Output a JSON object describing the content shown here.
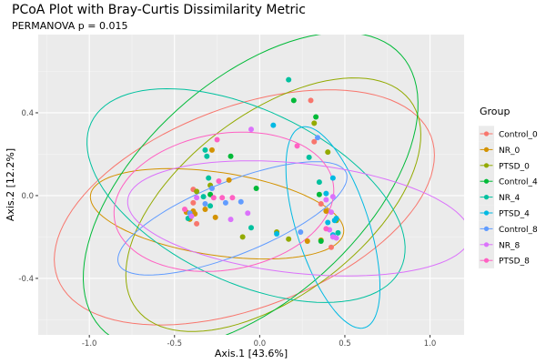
{
  "colors": {
    "Control_0": "#F8766D",
    "NR_0": "#D39200",
    "PTSD_0": "#93AA00",
    "Control_4": "#00BA38",
    "NR_4": "#00C19F",
    "PTSD_4": "#00B9E3",
    "Control_8": "#619CFF",
    "NR_8": "#DB72FB",
    "PTSD_8": "#FF61C3"
  },
  "chart_data": {
    "type": "scatter",
    "title": "PCoA Plot with Bray-Curtis Dissimilarity Metric",
    "subtitle": "PERMANOVA p = 0.015",
    "xlabel": "Axis.1  [43.6%]",
    "ylabel": "Axis.2  [12.2%]",
    "xlim": [
      -1.3,
      1.2
    ],
    "ylim": [
      -0.673,
      0.778
    ],
    "xticks": [
      -1.0,
      -0.5,
      0.0,
      0.5,
      1.0
    ],
    "xtick_labels": [
      "-1.0",
      "-0.5",
      "0.0",
      "0.5",
      "1.0"
    ],
    "yticks": [
      -0.4,
      0.0,
      0.4
    ],
    "ytick_labels": [
      "-0.4",
      "0.0",
      "0.4"
    ],
    "grid": true,
    "legend": {
      "title": "Group",
      "placement": "right"
    },
    "series": [
      {
        "name": "Control_0",
        "points": [
          [
            -0.39,
            0.03
          ],
          [
            -0.39,
            -0.035
          ],
          [
            -0.37,
            -0.136
          ],
          [
            0.3,
            0.46
          ],
          [
            0.32,
            0.26
          ],
          [
            0.36,
            -0.04
          ],
          [
            0.42,
            -0.25
          ]
        ],
        "ellipse": {
          "center": [
            -0.09,
            -0.057
          ],
          "major": [
            1.096,
            0.343
          ],
          "minor": [
            0.209,
            -0.453
          ]
        }
      },
      {
        "name": "NR_0",
        "points": [
          [
            -0.28,
            0.22
          ],
          [
            -0.18,
            0.075
          ],
          [
            -0.32,
            -0.066
          ],
          [
            -0.43,
            -0.08
          ],
          [
            -0.39,
            -0.075
          ],
          [
            -0.41,
            -0.114
          ],
          [
            -0.38,
            -0.088
          ],
          [
            -0.26,
            -0.105
          ],
          [
            0.39,
            -0.075
          ],
          [
            0.28,
            -0.22
          ],
          [
            0.36,
            -0.215
          ]
        ],
        "ellipse": {
          "center": [
            -0.25,
            -0.088
          ],
          "major": [
            0.743,
            -0.092
          ],
          "minor": [
            -0.037,
            -0.198
          ]
        }
      },
      {
        "name": "PTSD_0",
        "points": [
          [
            -0.29,
            0.05
          ],
          [
            -0.37,
            0.02
          ],
          [
            -0.1,
            -0.2
          ],
          [
            0.1,
            -0.176
          ],
          [
            0.17,
            -0.21
          ],
          [
            0.32,
            0.35
          ],
          [
            0.4,
            0.21
          ],
          [
            0.45,
            -0.12
          ]
        ],
        "ellipse": {
          "center": [
            0.08,
            -0.044
          ],
          "major": [
            0.802,
            0.505
          ],
          "minor": [
            0.326,
            -0.347
          ]
        }
      },
      {
        "name": "Control_4",
        "points": [
          [
            -0.17,
            0.19
          ],
          [
            -0.02,
            0.035
          ],
          [
            -0.29,
            0.005
          ],
          [
            0.2,
            0.46
          ],
          [
            0.33,
            0.38
          ],
          [
            0.35,
            0.005
          ],
          [
            0.36,
            -0.22
          ]
        ],
        "ellipse": {
          "center": [
            -0.053,
            0.022
          ],
          "major": [
            0.882,
            0.659
          ],
          "minor": [
            0.433,
            -0.391
          ]
        }
      },
      {
        "name": "NR_4",
        "points": [
          [
            0.17,
            0.56
          ],
          [
            -0.32,
            0.22
          ],
          [
            -0.31,
            0.19
          ],
          [
            -0.3,
            0.085
          ],
          [
            -0.33,
            -0.005
          ],
          [
            -0.29,
            -0.05
          ],
          [
            -0.42,
            -0.11
          ],
          [
            -0.05,
            -0.155
          ],
          [
            0.29,
            0.185
          ],
          [
            0.35,
            0.065
          ],
          [
            0.46,
            -0.18
          ]
        ],
        "ellipse": {
          "center": [
            -0.08,
            0.0
          ],
          "major": [
            0.909,
            -0.352
          ],
          "minor": [
            -0.214,
            -0.378
          ]
        }
      },
      {
        "name": "PTSD_4",
        "points": [
          [
            0.08,
            0.34
          ],
          [
            0.1,
            -0.185
          ],
          [
            0.43,
            0.085
          ],
          [
            0.39,
            0.01
          ],
          [
            0.4,
            -0.13
          ],
          [
            0.45,
            -0.11
          ],
          [
            0.44,
            -0.12
          ],
          [
            0.43,
            -0.19
          ]
        ],
        "ellipse": {
          "center": [
            0.43,
            -0.154
          ],
          "major": [
            -0.187,
            0.484
          ],
          "minor": [
            0.203,
            0.053
          ]
        }
      },
      {
        "name": "Control_8",
        "points": [
          [
            -0.28,
            0.035
          ],
          [
            -0.32,
            -0.04
          ],
          [
            -0.2,
            -0.035
          ],
          [
            -0.11,
            -0.03
          ],
          [
            -0.41,
            -0.085
          ],
          [
            0.34,
            0.28
          ],
          [
            0.24,
            -0.176
          ]
        ],
        "ellipse": {
          "center": [
            -0.16,
            -0.11
          ],
          "major": [
            0.668,
            0.22
          ],
          "minor": [
            0.08,
            -0.163
          ]
        }
      },
      {
        "name": "NR_8",
        "points": [
          [
            -0.05,
            0.32
          ],
          [
            -0.37,
            -0.01
          ],
          [
            -0.4,
            -0.1
          ],
          [
            -0.07,
            -0.085
          ],
          [
            -0.17,
            -0.115
          ],
          [
            0.43,
            -0.005
          ],
          [
            0.39,
            -0.02
          ],
          [
            0.42,
            -0.08
          ],
          [
            0.41,
            -0.165
          ],
          [
            0.43,
            -0.2
          ],
          [
            0.45,
            -0.205
          ]
        ],
        "ellipse": {
          "center": [
            0.23,
            -0.11
          ],
          "major": [
            1.005,
            -0.088
          ],
          "minor": [
            -0.032,
            -0.264
          ]
        }
      },
      {
        "name": "PTSD_8",
        "points": [
          [
            -0.25,
            0.27
          ],
          [
            -0.24,
            0.07
          ],
          [
            -0.27,
            -0.01
          ],
          [
            -0.22,
            -0.01
          ],
          [
            -0.16,
            -0.01
          ],
          [
            -0.44,
            -0.066
          ],
          [
            0.22,
            0.24
          ],
          [
            0.39,
            -0.16
          ]
        ],
        "ellipse": {
          "center": [
            -0.21,
            -0.03
          ],
          "major": [
            0.642,
            0.088
          ],
          "minor": [
            0.064,
            -0.325
          ]
        }
      }
    ]
  }
}
